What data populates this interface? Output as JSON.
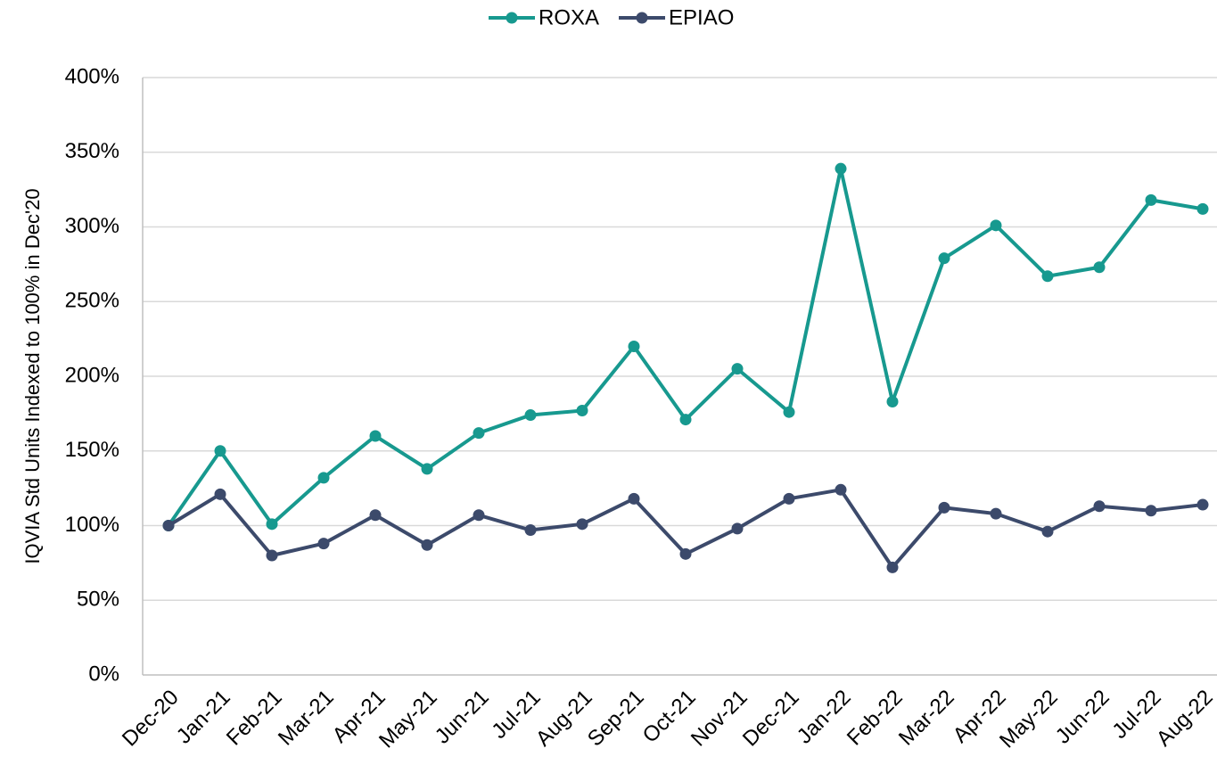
{
  "chart_data": {
    "type": "line",
    "y_label": "IQVIA Std Units Indexed to 100% in Dec'20",
    "categories": [
      "Dec-20",
      "Jan-21",
      "Feb-21",
      "Mar-21",
      "Apr-21",
      "May-21",
      "Jun-21",
      "Jul-21",
      "Aug-21",
      "Sep-21",
      "Oct-21",
      "Nov-21",
      "Dec-21",
      "Jan-22",
      "Feb-22",
      "Mar-22",
      "Apr-22",
      "May-22",
      "Jun-22",
      "Jul-22",
      "Aug-22"
    ],
    "series": [
      {
        "name": "ROXA",
        "color": "#17998f",
        "values": [
          100,
          150,
          101,
          132,
          160,
          138,
          162,
          174,
          177,
          220,
          171,
          205,
          176,
          339,
          183,
          279,
          301,
          267,
          273,
          318,
          312
        ]
      },
      {
        "name": "EPIAO",
        "color": "#3c4a6b",
        "values": [
          100,
          121,
          80,
          88,
          107,
          87,
          107,
          97,
          101,
          118,
          81,
          98,
          118,
          124,
          72,
          112,
          108,
          96,
          113,
          110,
          114
        ]
      }
    ],
    "ylim": [
      0,
      400
    ],
    "yticks": [
      {
        "value": 0,
        "label": "0%"
      },
      {
        "value": 50,
        "label": "50%"
      },
      {
        "value": 100,
        "label": "100%"
      },
      {
        "value": 150,
        "label": "150%"
      },
      {
        "value": 200,
        "label": "200%"
      },
      {
        "value": 250,
        "label": "250%"
      },
      {
        "value": 300,
        "label": "300%"
      },
      {
        "value": 350,
        "label": "350%"
      },
      {
        "value": 400,
        "label": "400%"
      }
    ],
    "grid": true,
    "legend": "top"
  }
}
